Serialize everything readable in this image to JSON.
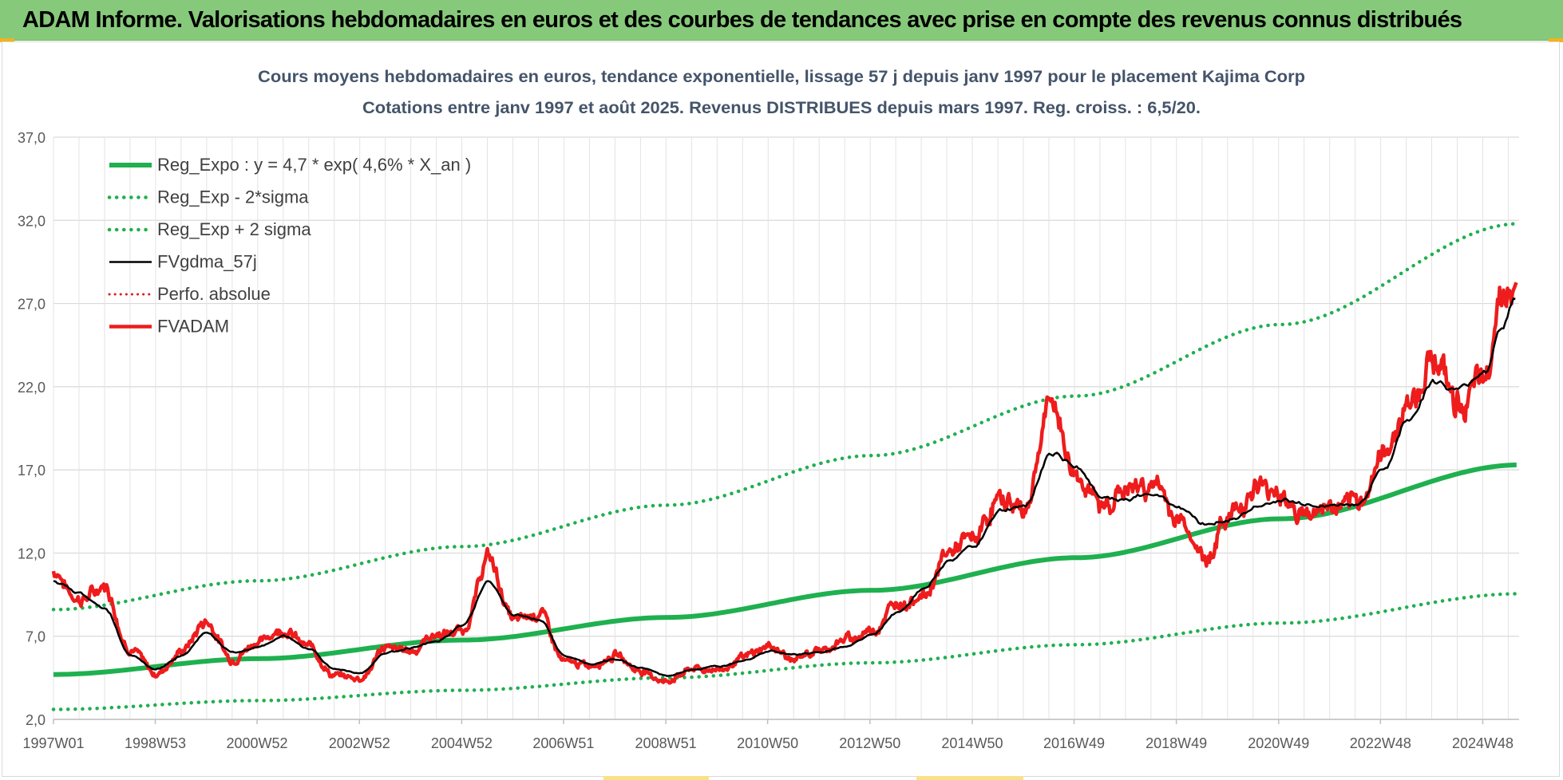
{
  "header": {
    "title": "ADAM Informe. Valorisations hebdomadaires en euros et des courbes de tendances avec prise en compte des revenus connus distribués"
  },
  "colors": {
    "header_bg": "#86c97a",
    "reg_expo": "#1fb04f",
    "sigma_band": "#1fb04f",
    "fvgdma": "#000000",
    "perfo": "#e21a1a",
    "fvadam": "#ee1c1c",
    "grid": "#d9d9d9"
  },
  "chart_data": {
    "type": "line",
    "title": "Cours moyens hebdomadaires en euros, tendance exponentielle, lissage 57 j depuis janv 1997 pour le placement Kajima Corp",
    "subtitle": "Cotations entre janv 1997 et août 2025.  Revenus DISTRIBUES depuis mars 1997. Reg. croiss. : 6,5/20.",
    "xlabel": "",
    "ylabel": "",
    "ylim": [
      2.0,
      37.0
    ],
    "yticks": [
      "2,0",
      "7,0",
      "12,0",
      "17,0",
      "22,0",
      "27,0",
      "32,0",
      "37,0"
    ],
    "xlim": [
      1997.0,
      2025.65
    ],
    "xtick_labels": [
      "1997W01",
      "1998W53",
      "2000W52",
      "2002W52",
      "2004W52",
      "2006W51",
      "2008W51",
      "2010W50",
      "2012W50",
      "2014W50",
      "2016W49",
      "2018W49",
      "2020W49",
      "2022W48",
      "2024W48"
    ],
    "xtick_years": [
      1997.0,
      1998.99,
      2000.98,
      2002.98,
      2004.98,
      2006.97,
      2008.97,
      2010.96,
      2012.96,
      2014.96,
      2016.95,
      2018.95,
      2020.95,
      2022.94,
      2024.94
    ],
    "grid": true,
    "legend_position": "top-left",
    "series": [
      {
        "name": "Reg_Expo : y = 4,7 * exp( 4,6% *  X_an )",
        "style": "solid-thick",
        "x": [
          1997,
          2001,
          2005,
          2009,
          2013,
          2017,
          2021,
          2025.65
        ],
        "y": [
          4.7,
          5.65,
          6.77,
          8.13,
          9.76,
          11.72,
          14.06,
          17.3
        ]
      },
      {
        "name": "Reg_Exp - 2*sigma",
        "style": "dotted",
        "x": [
          1997,
          2001,
          2005,
          2009,
          2013,
          2017,
          2021,
          2025.65
        ],
        "y": [
          2.6,
          3.13,
          3.75,
          4.5,
          5.4,
          6.49,
          7.79,
          9.55
        ]
      },
      {
        "name": "Reg_Exp + 2 sigma",
        "style": "dotted",
        "x": [
          1997,
          2001,
          2005,
          2009,
          2013,
          2017,
          2021,
          2025.65
        ],
        "y": [
          8.6,
          10.33,
          12.39,
          14.88,
          17.86,
          21.44,
          25.74,
          31.8
        ]
      },
      {
        "name": "FVgdma_57j",
        "style": "solid-thin",
        "x": [
          1997.0,
          1997.5,
          1998.0,
          1998.5,
          1999.0,
          1999.5,
          2000.0,
          2000.5,
          2001.0,
          2001.5,
          2002.0,
          2002.5,
          2003.0,
          2003.5,
          2004.0,
          2004.5,
          2005.0,
          2005.5,
          2006.0,
          2006.5,
          2007.0,
          2007.5,
          2008.0,
          2008.5,
          2009.0,
          2009.5,
          2010.0,
          2010.5,
          2011.0,
          2011.5,
          2012.0,
          2012.5,
          2013.0,
          2013.5,
          2014.0,
          2014.5,
          2015.0,
          2015.5,
          2016.0,
          2016.5,
          2017.0,
          2017.5,
          2018.0,
          2018.5,
          2019.0,
          2019.5,
          2020.0,
          2020.5,
          2021.0,
          2021.5,
          2022.0,
          2022.5,
          2023.0,
          2023.5,
          2024.0,
          2024.5,
          2025.0,
          2025.3,
          2025.6
        ],
        "y": [
          10.3,
          9.6,
          8.7,
          5.9,
          5.0,
          5.8,
          7.2,
          6.0,
          6.3,
          7.0,
          6.2,
          5.0,
          4.8,
          6.0,
          6.3,
          6.7,
          7.6,
          10.3,
          8.3,
          8.0,
          5.8,
          5.3,
          5.6,
          5.1,
          4.6,
          5.0,
          5.2,
          5.6,
          6.1,
          5.9,
          6.0,
          6.4,
          7.1,
          8.4,
          9.8,
          11.5,
          12.5,
          14.6,
          14.8,
          18.0,
          17.2,
          15.4,
          15.2,
          15.6,
          14.8,
          13.8,
          13.9,
          14.8,
          15.2,
          15.0,
          14.8,
          14.9,
          17.0,
          20.2,
          22.3,
          21.8,
          23.0,
          25.6,
          27.2
        ]
      },
      {
        "name": "Perfo. absolue",
        "style": "dotted-red",
        "x": [],
        "y": []
      },
      {
        "name": "FVADAM",
        "style": "solid-thick-red",
        "x": [
          1997.0,
          1997.5,
          1998.0,
          1998.5,
          1999.0,
          1999.5,
          2000.0,
          2000.5,
          2001.0,
          2001.5,
          2002.0,
          2002.5,
          2003.0,
          2003.5,
          2004.0,
          2004.5,
          2005.0,
          2005.5,
          2006.0,
          2006.5,
          2007.0,
          2007.5,
          2008.0,
          2008.5,
          2009.0,
          2009.5,
          2010.0,
          2010.5,
          2011.0,
          2011.5,
          2012.0,
          2012.5,
          2013.0,
          2013.5,
          2014.0,
          2014.5,
          2015.0,
          2015.5,
          2016.0,
          2016.5,
          2017.0,
          2017.5,
          2018.0,
          2018.5,
          2019.0,
          2019.5,
          2020.0,
          2020.5,
          2021.0,
          2021.5,
          2022.0,
          2022.5,
          2023.0,
          2023.5,
          2024.0,
          2024.5,
          2025.0,
          2025.3,
          2025.6
        ],
        "y": [
          10.9,
          9.2,
          9.9,
          6.2,
          4.7,
          6.1,
          7.9,
          5.6,
          6.7,
          7.4,
          6.4,
          4.6,
          4.5,
          6.3,
          6.2,
          7.1,
          7.2,
          11.6,
          8.0,
          8.5,
          5.5,
          5.2,
          5.9,
          4.9,
          4.3,
          5.1,
          5.0,
          5.8,
          6.4,
          5.6,
          6.1,
          6.8,
          7.4,
          8.9,
          9.5,
          12.2,
          12.9,
          15.3,
          14.6,
          20.8,
          16.4,
          14.8,
          15.8,
          16.1,
          13.9,
          11.6,
          14.4,
          15.8,
          15.6,
          14.3,
          14.6,
          14.8,
          17.8,
          21.1,
          23.8,
          21.1,
          22.3,
          27.8,
          27.3
        ]
      }
    ]
  }
}
